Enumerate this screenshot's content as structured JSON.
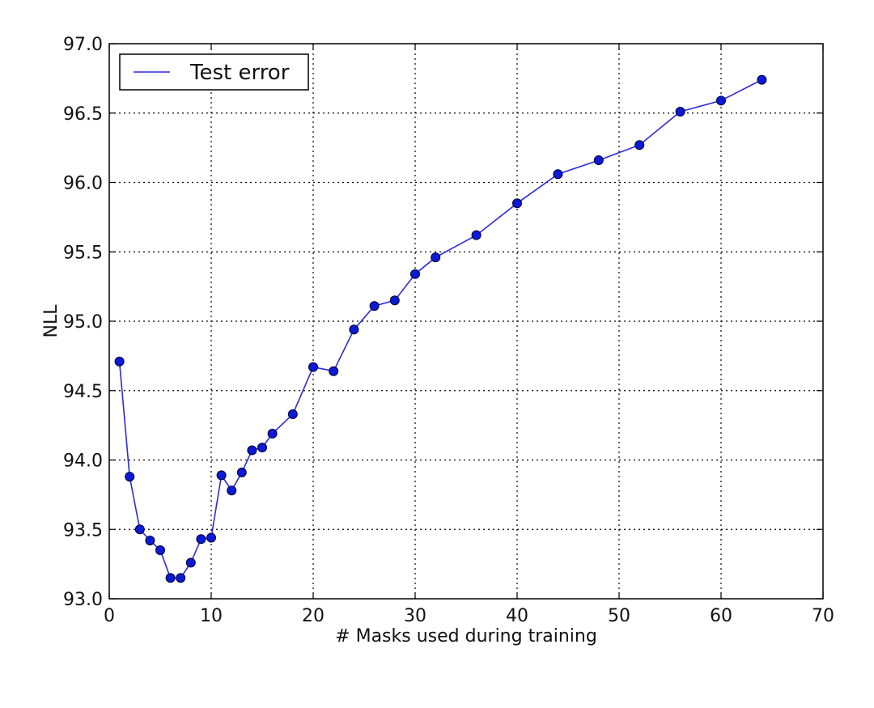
{
  "chart_data": {
    "type": "line",
    "title": "",
    "xlabel": "# Masks used during training",
    "ylabel": "NLL",
    "xlim": [
      0,
      70
    ],
    "ylim": [
      93.0,
      97.0
    ],
    "xticks": [
      0,
      10,
      20,
      30,
      40,
      50,
      60,
      70
    ],
    "xtick_labels": [
      "0",
      "10",
      "20",
      "30",
      "40",
      "50",
      "60",
      "70"
    ],
    "yticks": [
      93.0,
      93.5,
      94.0,
      94.5,
      95.0,
      95.5,
      96.0,
      96.5,
      97.0
    ],
    "ytick_labels": [
      "93.0",
      "93.5",
      "94.0",
      "94.5",
      "95.0",
      "95.5",
      "96.0",
      "96.5",
      "97.0"
    ],
    "grid": true,
    "grid_style": "dotted",
    "legend_position": "top-left",
    "series": [
      {
        "name": "Test error",
        "color": "#2b2bdd",
        "marker_color": "#0a1ad6",
        "x": [
          1,
          2,
          3,
          4,
          5,
          6,
          7,
          8,
          9,
          10,
          11,
          12,
          13,
          14,
          15,
          16,
          18,
          20,
          22,
          24,
          26,
          28,
          30,
          32,
          36,
          40,
          44,
          48,
          52,
          56,
          60,
          64
        ],
        "y": [
          94.71,
          93.88,
          93.5,
          93.42,
          93.35,
          93.15,
          93.15,
          93.26,
          93.43,
          93.44,
          93.89,
          93.78,
          93.91,
          94.07,
          94.09,
          94.19,
          94.33,
          94.67,
          94.64,
          94.94,
          95.11,
          95.15,
          95.34,
          95.46,
          95.62,
          95.85,
          96.06,
          96.16,
          96.27,
          96.51,
          96.59,
          96.74
        ]
      }
    ]
  }
}
